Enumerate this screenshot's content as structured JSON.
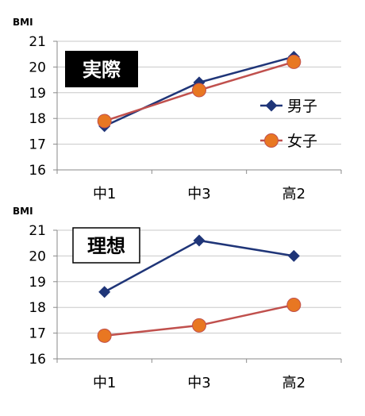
{
  "chart_data": [
    {
      "type": "line",
      "title": "実際",
      "ylabel": "BMI",
      "categories": [
        "中1",
        "中3",
        "高2"
      ],
      "ylim": [
        16,
        21
      ],
      "yticks": [
        16,
        17,
        18,
        19,
        20,
        21
      ],
      "grid": true,
      "legend": "right",
      "series": [
        {
          "name": "男子",
          "values": [
            17.7,
            19.4,
            20.4
          ],
          "color": "#1f3578",
          "marker": "diamond"
        },
        {
          "name": "女子",
          "values": [
            17.9,
            19.1,
            20.2
          ],
          "color": "#c0504d",
          "marker_fill": "#e87722",
          "marker": "circle"
        }
      ]
    },
    {
      "type": "line",
      "title": "理想",
      "ylabel": "BMI",
      "categories": [
        "中1",
        "中3",
        "高2"
      ],
      "ylim": [
        16,
        21
      ],
      "yticks": [
        16,
        17,
        18,
        19,
        20,
        21
      ],
      "grid": true,
      "series": [
        {
          "values": [
            18.6,
            20.6,
            20.0
          ],
          "color": "#1f3578",
          "marker": "diamond"
        },
        {
          "values": [
            16.9,
            17.3,
            18.1
          ],
          "color": "#c0504d",
          "marker_fill": "#e87722",
          "marker": "circle"
        }
      ]
    }
  ]
}
